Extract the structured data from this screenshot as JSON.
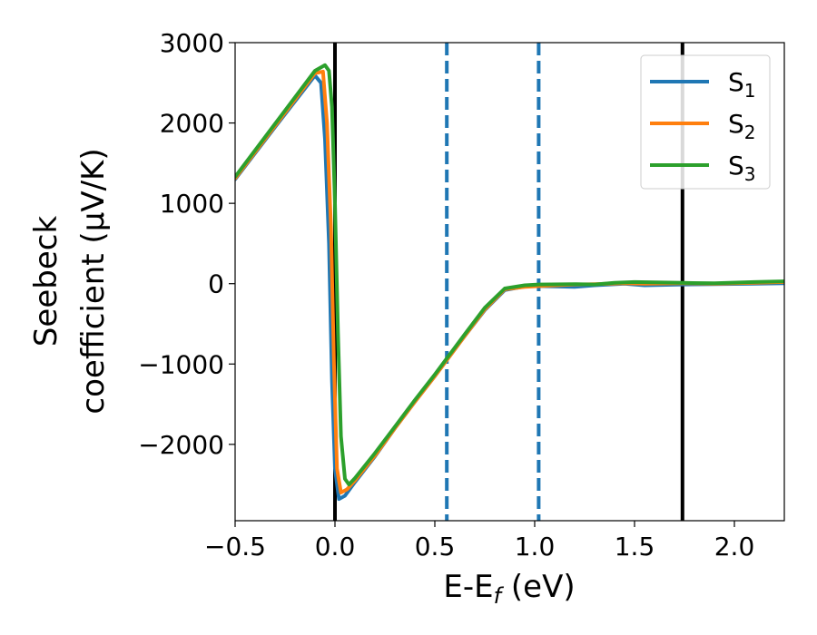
{
  "chart_data": {
    "type": "line",
    "xlabel_main": "E-E",
    "xlabel_sub": "f",
    "xlabel_unit": " (eV)",
    "ylabel_line1": "Seebeck",
    "ylabel_line2": "coefficient  (μV/K)",
    "xlim": [
      -0.5,
      2.25
    ],
    "ylim": [
      -2950,
      3000
    ],
    "x_ticks": [
      -0.5,
      0.0,
      0.5,
      1.0,
      1.5,
      2.0
    ],
    "x_tick_labels": [
      "−0.5",
      "0.0",
      "0.5",
      "1.0",
      "1.5",
      "2.0"
    ],
    "y_ticks": [
      3000,
      2000,
      1000,
      0,
      -1000,
      -2000
    ],
    "y_tick_labels": [
      "3000",
      "2000",
      "1000",
      "0",
      "−1000",
      "−2000"
    ],
    "grid": false,
    "legend_position": "top-right",
    "vertical_lines": [
      {
        "x": 0.0,
        "style": "solid",
        "color": "#000000"
      },
      {
        "x": 0.56,
        "style": "dashed",
        "color": "#1f77b4"
      },
      {
        "x": 1.02,
        "style": "dashed",
        "color": "#1f77b4"
      },
      {
        "x": 1.74,
        "style": "solid",
        "color": "#000000"
      }
    ],
    "series": [
      {
        "name_main": "S",
        "name_sub": "1",
        "color": "#1f77b4",
        "points": [
          [
            -0.5,
            1300
          ],
          [
            -0.3,
            1950
          ],
          [
            -0.1,
            2590
          ],
          [
            -0.07,
            2500
          ],
          [
            -0.05,
            1800
          ],
          [
            -0.03,
            500
          ],
          [
            -0.015,
            -1200
          ],
          [
            0.0,
            -2300
          ],
          [
            0.02,
            -2680
          ],
          [
            0.05,
            -2640
          ],
          [
            0.1,
            -2470
          ],
          [
            0.2,
            -2150
          ],
          [
            0.3,
            -1800
          ],
          [
            0.4,
            -1470
          ],
          [
            0.5,
            -1150
          ],
          [
            0.56,
            -950
          ],
          [
            0.65,
            -650
          ],
          [
            0.75,
            -330
          ],
          [
            0.85,
            -80
          ],
          [
            0.95,
            -35
          ],
          [
            1.02,
            -30
          ],
          [
            1.2,
            -40
          ],
          [
            1.3,
            -20
          ],
          [
            1.45,
            0
          ],
          [
            1.55,
            -20
          ],
          [
            1.74,
            -10
          ],
          [
            1.9,
            -5
          ],
          [
            2.1,
            0
          ],
          [
            2.25,
            5
          ]
        ]
      },
      {
        "name_main": "S",
        "name_sub": "2",
        "color": "#ff7f0e",
        "points": [
          [
            -0.5,
            1310
          ],
          [
            -0.3,
            1965
          ],
          [
            -0.1,
            2620
          ],
          [
            -0.06,
            2640
          ],
          [
            -0.04,
            2000
          ],
          [
            -0.02,
            700
          ],
          [
            -0.005,
            -1000
          ],
          [
            0.01,
            -2300
          ],
          [
            0.03,
            -2600
          ],
          [
            0.06,
            -2560
          ],
          [
            0.1,
            -2450
          ],
          [
            0.2,
            -2140
          ],
          [
            0.3,
            -1800
          ],
          [
            0.4,
            -1470
          ],
          [
            0.5,
            -1150
          ],
          [
            0.56,
            -950
          ],
          [
            0.65,
            -650
          ],
          [
            0.75,
            -320
          ],
          [
            0.85,
            -70
          ],
          [
            0.95,
            -40
          ],
          [
            1.02,
            -30
          ],
          [
            1.2,
            -10
          ],
          [
            1.3,
            -5
          ],
          [
            1.45,
            5
          ],
          [
            1.55,
            0
          ],
          [
            1.74,
            5
          ],
          [
            1.9,
            0
          ],
          [
            2.1,
            10
          ],
          [
            2.25,
            20
          ]
        ]
      },
      {
        "name_main": "S",
        "name_sub": "3",
        "color": "#2ca02c",
        "points": [
          [
            -0.5,
            1330
          ],
          [
            -0.3,
            1990
          ],
          [
            -0.1,
            2650
          ],
          [
            -0.05,
            2720
          ],
          [
            -0.03,
            2650
          ],
          [
            -0.015,
            2200
          ],
          [
            0.0,
            1000
          ],
          [
            0.015,
            -600
          ],
          [
            0.03,
            -1900
          ],
          [
            0.05,
            -2430
          ],
          [
            0.07,
            -2500
          ],
          [
            0.1,
            -2420
          ],
          [
            0.2,
            -2110
          ],
          [
            0.3,
            -1780
          ],
          [
            0.4,
            -1450
          ],
          [
            0.5,
            -1130
          ],
          [
            0.56,
            -930
          ],
          [
            0.65,
            -630
          ],
          [
            0.75,
            -300
          ],
          [
            0.85,
            -60
          ],
          [
            0.95,
            -20
          ],
          [
            1.02,
            -10
          ],
          [
            1.2,
            -5
          ],
          [
            1.3,
            -10
          ],
          [
            1.4,
            10
          ],
          [
            1.5,
            20
          ],
          [
            1.74,
            10
          ],
          [
            1.9,
            5
          ],
          [
            2.1,
            20
          ],
          [
            2.25,
            30
          ]
        ]
      }
    ]
  }
}
